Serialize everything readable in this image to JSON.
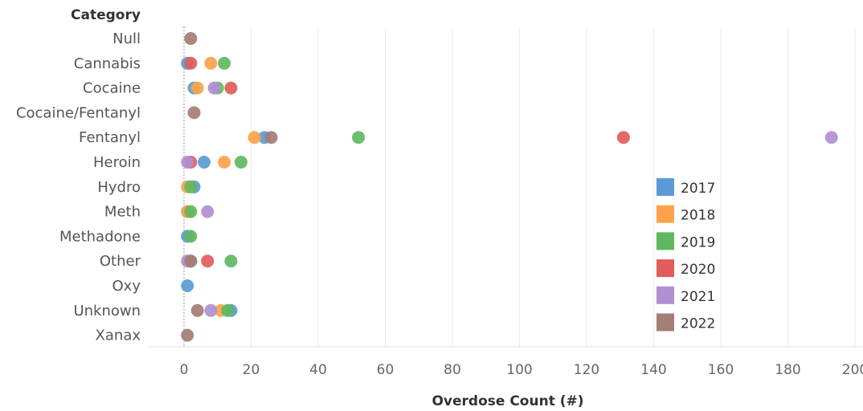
{
  "chart_data": {
    "type": "scatter",
    "category_header": "Category",
    "xlabel": "Overdose Count (#)",
    "categories": [
      "Null",
      "Cannabis",
      "Cocaine",
      "Cocaine/Fentanyl",
      "Fentanyl",
      "Heroin",
      "Hydro",
      "Meth",
      "Methadone",
      "Other",
      "Oxy",
      "Unknown",
      "Xanax"
    ],
    "xlim": [
      -10,
      200
    ],
    "xticks": [
      0,
      20,
      40,
      60,
      80,
      100,
      120,
      140,
      160,
      180,
      200
    ],
    "grid": true,
    "legend_position": "right",
    "series": [
      {
        "name": "2017",
        "color": "#5b9bd5",
        "points": [
          {
            "category": "Cannabis",
            "x": 1
          },
          {
            "category": "Cocaine",
            "x": 3
          },
          {
            "category": "Fentanyl",
            "x": 24
          },
          {
            "category": "Heroin",
            "x": 6
          },
          {
            "category": "Hydro",
            "x": 3
          },
          {
            "category": "Meth",
            "x": 1
          },
          {
            "category": "Methadone",
            "x": 1
          },
          {
            "category": "Other",
            "x": 2
          },
          {
            "category": "Oxy",
            "x": 1
          },
          {
            "category": "Unknown",
            "x": 14
          }
        ]
      },
      {
        "name": "2018",
        "color": "#fca349",
        "points": [
          {
            "category": "Cannabis",
            "x": 8
          },
          {
            "category": "Cocaine",
            "x": 4
          },
          {
            "category": "Fentanyl",
            "x": 21
          },
          {
            "category": "Heroin",
            "x": 12
          },
          {
            "category": "Hydro",
            "x": 1
          },
          {
            "category": "Meth",
            "x": 1
          },
          {
            "category": "Unknown",
            "x": 11
          }
        ]
      },
      {
        "name": "2019",
        "color": "#5fb85f",
        "points": [
          {
            "category": "Cannabis",
            "x": 12
          },
          {
            "category": "Cocaine",
            "x": 10
          },
          {
            "category": "Fentanyl",
            "x": 52
          },
          {
            "category": "Heroin",
            "x": 17
          },
          {
            "category": "Hydro",
            "x": 2
          },
          {
            "category": "Meth",
            "x": 2
          },
          {
            "category": "Methadone",
            "x": 2
          },
          {
            "category": "Other",
            "x": 14
          },
          {
            "category": "Unknown",
            "x": 13
          }
        ]
      },
      {
        "name": "2020",
        "color": "#e15c5c",
        "points": [
          {
            "category": "Cannabis",
            "x": 2
          },
          {
            "category": "Cocaine",
            "x": 14
          },
          {
            "category": "Fentanyl",
            "x": 131
          },
          {
            "category": "Heroin",
            "x": 2
          },
          {
            "category": "Other",
            "x": 7
          }
        ]
      },
      {
        "name": "2021",
        "color": "#b18fd1",
        "points": [
          {
            "category": "Cocaine",
            "x": 9
          },
          {
            "category": "Fentanyl",
            "x": 193
          },
          {
            "category": "Heroin",
            "x": 1
          },
          {
            "category": "Meth",
            "x": 7
          },
          {
            "category": "Other",
            "x": 1
          },
          {
            "category": "Unknown",
            "x": 8
          }
        ]
      },
      {
        "name": "2022",
        "color": "#a47d74",
        "points": [
          {
            "category": "Null",
            "x": 2
          },
          {
            "category": "Cocaine/Fentanyl",
            "x": 3
          },
          {
            "category": "Fentanyl",
            "x": 26
          },
          {
            "category": "Other",
            "x": 2
          },
          {
            "category": "Unknown",
            "x": 4
          },
          {
            "category": "Xanax",
            "x": 1
          }
        ]
      }
    ]
  }
}
